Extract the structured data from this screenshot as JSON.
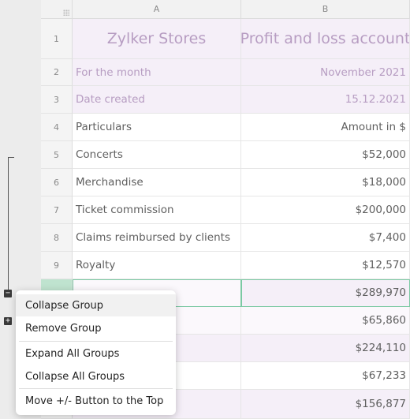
{
  "columns": [
    "A",
    "B"
  ],
  "rows": [
    {
      "num": "1",
      "a": "Zylker Stores",
      "b": "Profit and loss account"
    },
    {
      "num": "2",
      "a": "For the month",
      "b": "November 2021"
    },
    {
      "num": "3",
      "a": "Date created",
      "b": "15.12.2021"
    },
    {
      "num": "4",
      "a": "Particulars",
      "b": "Amount in $"
    },
    {
      "num": "5",
      "a": "Concerts",
      "b": "$52,000"
    },
    {
      "num": "6",
      "a": "Merchandise",
      "b": "$18,000"
    },
    {
      "num": "7",
      "a": "Ticket commission",
      "b": "$200,000"
    },
    {
      "num": "8",
      "a": "Claims reimbursed by clients",
      "b": "$7,400"
    },
    {
      "num": "9",
      "a": "Royalty",
      "b": "$12,570"
    },
    {
      "num": "",
      "a": "",
      "b": "$289,970"
    },
    {
      "num": "",
      "a": "",
      "b": "$65,860"
    },
    {
      "num": "",
      "a": "",
      "b": "$224,110"
    },
    {
      "num": "",
      "a": "",
      "b": "$67,233"
    },
    {
      "num": "",
      "a": "",
      "b": "$156,877"
    }
  ],
  "group_buttons": {
    "collapse": "−",
    "expand": "+"
  },
  "context_menu": {
    "items": [
      "Collapse Group",
      "Remove Group",
      "Expand All Groups",
      "Collapse All Groups",
      "Move +/- Button to the Top"
    ]
  },
  "colors": {
    "accent_lavender": "#b79dc2",
    "selection_green": "#7bc9a3"
  }
}
